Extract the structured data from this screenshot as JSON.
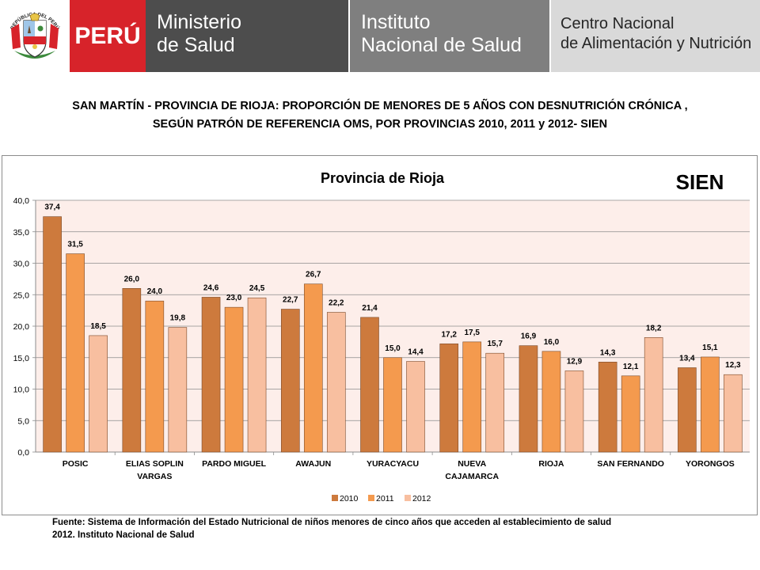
{
  "header": {
    "seal_text": "REPÚBLICA DEL PERÚ",
    "brand": "PERÚ",
    "ministry_line1": "Ministerio",
    "ministry_line2": "de Salud",
    "institute_line1": "Instituto",
    "institute_line2": "Nacional de Salud",
    "center_line1": "Centro Nacional",
    "center_line2": "de Alimentación y Nutrición"
  },
  "title_line1": "SAN MARTÍN -  PROVINCIA DE RIOJA: PROPORCIÓN DE MENORES DE 5 AÑOS CON DESNUTRICIÓN CRÓNICA ,",
  "title_line2": "SEGÚN PATRÓN DE REFERENCIA OMS,  POR PROVINCIAS  2010, 2011 y 2012- SIEN",
  "source_line1": "Fuente: Sistema de Información del Estado Nutricional de niños menores de cinco años que acceden al establecimiento de salud",
  "source_line2": "2012.  Instituto Nacional de Salud",
  "colors": {
    "red": "#d7232a",
    "dark_gray": "#4d4d4d",
    "mid_gray": "#7f7f7f",
    "light_gray": "#d9d9d9",
    "plot_bg": "#fdeeea",
    "series_2010": "#cd7a3d",
    "series_2011": "#f49a4e",
    "series_2012": "#f8bfa0"
  },
  "chart_data": {
    "type": "bar",
    "title": "Provincia de Rioja",
    "badge": "SIEN",
    "xlabel": "",
    "ylabel": "",
    "ylim": [
      0,
      40
    ],
    "yticks": [
      "0,0",
      "5,0",
      "10,0",
      "15,0",
      "20,0",
      "25,0",
      "30,0",
      "35,0",
      "40,0"
    ],
    "grid": true,
    "legend_position": "bottom",
    "categories": [
      [
        "POSIC"
      ],
      [
        "ELIAS SOPLIN",
        "VARGAS"
      ],
      [
        "PARDO MIGUEL"
      ],
      [
        "AWAJUN"
      ],
      [
        "YURACYACU"
      ],
      [
        "NUEVA",
        "CAJAMARCA"
      ],
      [
        "RIOJA"
      ],
      [
        "SAN FERNANDO"
      ],
      [
        "YORONGOS"
      ]
    ],
    "series": [
      {
        "name": "2010",
        "values": [
          37.4,
          26.0,
          24.6,
          22.7,
          21.4,
          17.2,
          16.9,
          14.3,
          13.4
        ]
      },
      {
        "name": "2011",
        "values": [
          31.5,
          24.0,
          23.0,
          26.7,
          15.0,
          17.5,
          16.0,
          12.1,
          15.1
        ]
      },
      {
        "name": "2012",
        "values": [
          18.5,
          19.8,
          24.5,
          22.2,
          14.4,
          15.7,
          12.9,
          18.2,
          12.3
        ]
      }
    ]
  }
}
